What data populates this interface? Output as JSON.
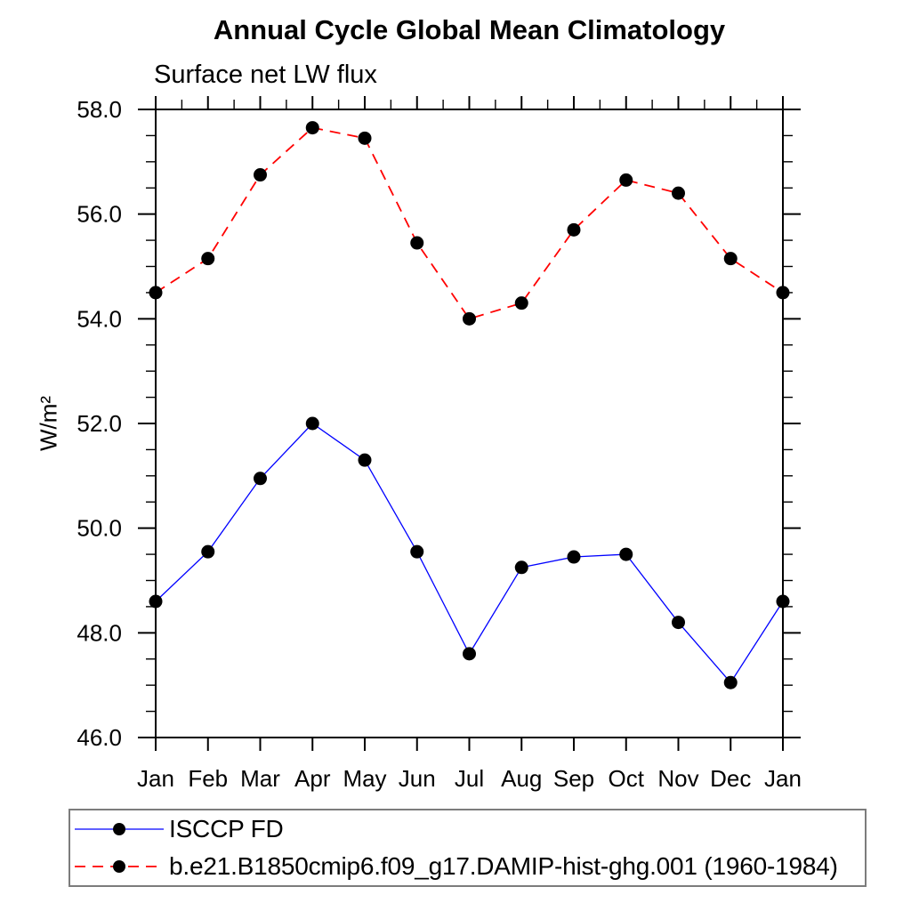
{
  "title": "Annual Cycle Global Mean Climatology",
  "subtitle": "Surface net LW flux",
  "y_axis": {
    "label": "W/m²",
    "tick_labels": [
      "46.0",
      "48.0",
      "50.0",
      "52.0",
      "54.0",
      "56.0",
      "58.0"
    ]
  },
  "chart_data": {
    "type": "line",
    "categories": [
      "Jan",
      "Feb",
      "Mar",
      "Apr",
      "May",
      "Jun",
      "Jul",
      "Aug",
      "Sep",
      "Oct",
      "Nov",
      "Dec",
      "Jan"
    ],
    "series": [
      {
        "name": "ISCCP FD",
        "color": "#0000ff",
        "line_style": "solid",
        "marker": "filled-circle",
        "marker_color": "#000000",
        "values": [
          48.6,
          49.55,
          50.95,
          52.0,
          51.3,
          49.55,
          47.6,
          49.25,
          49.45,
          49.5,
          48.2,
          47.05,
          48.6
        ]
      },
      {
        "name": "b.e21.B1850cmip6.f09_g17.DAMIP-hist-ghg.001 (1960-1984)",
        "color": "#ff0000",
        "line_style": "dashed",
        "marker": "filled-circle",
        "marker_color": "#000000",
        "values": [
          54.5,
          55.15,
          56.75,
          57.65,
          57.45,
          55.45,
          54.0,
          54.3,
          55.7,
          56.65,
          56.4,
          55.15,
          54.5
        ]
      }
    ],
    "ylim": [
      46,
      58
    ],
    "ytick_step": 2,
    "yminor_step": 0.5,
    "xminor_step": 0.5,
    "grid": false,
    "legend_position": "bottom-left-box",
    "frame_color": "#000000"
  }
}
